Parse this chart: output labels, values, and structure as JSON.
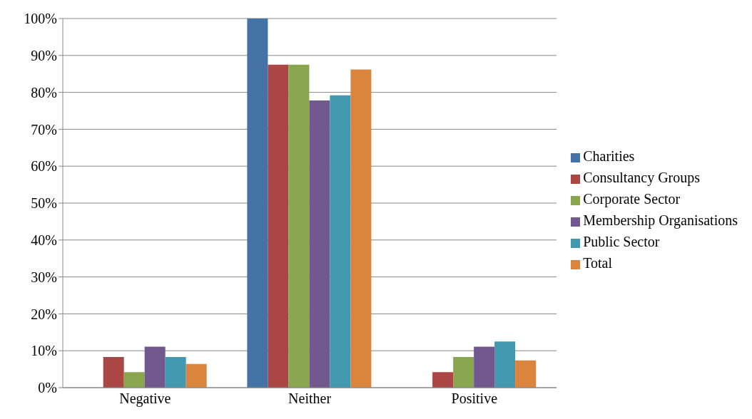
{
  "chart_data": {
    "type": "bar",
    "categories": [
      "Negative",
      "Neither",
      "Positive"
    ],
    "series": [
      {
        "name": "Charities",
        "color": "#4572a7",
        "values": [
          0,
          100,
          0
        ]
      },
      {
        "name": "Consultancy Groups",
        "color": "#aa4643",
        "values": [
          8.3,
          87.5,
          4.2
        ]
      },
      {
        "name": "Corporate Sector",
        "color": "#89a54e",
        "values": [
          4.2,
          87.5,
          8.3
        ]
      },
      {
        "name": "Membership Organisations",
        "color": "#71588f",
        "values": [
          11.1,
          77.8,
          11.1
        ]
      },
      {
        "name": "Public Sector",
        "color": "#4198af",
        "values": [
          8.3,
          79.2,
          12.5
        ]
      },
      {
        "name": "Total",
        "color": "#db843d",
        "values": [
          6.4,
          86.2,
          7.4
        ]
      }
    ],
    "ylim": [
      0,
      100
    ],
    "yticks": [
      {
        "value": 0,
        "label": "0%"
      },
      {
        "value": 10,
        "label": "10%"
      },
      {
        "value": 20,
        "label": "20%"
      },
      {
        "value": 30,
        "label": "30%"
      },
      {
        "value": 40,
        "label": "40%"
      },
      {
        "value": 50,
        "label": "50%"
      },
      {
        "value": 60,
        "label": "60%"
      },
      {
        "value": 70,
        "label": "70%"
      },
      {
        "value": 80,
        "label": "80%"
      },
      {
        "value": 90,
        "label": "90%"
      },
      {
        "value": 100,
        "label": "100%"
      }
    ],
    "grid": "y",
    "legend": "right"
  }
}
